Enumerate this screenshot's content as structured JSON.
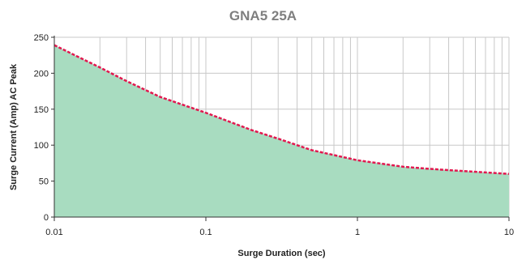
{
  "chart_data": {
    "type": "area",
    "title": "GNA5 25A",
    "xlabel": "Surge Duration (sec)",
    "ylabel": "Surge Current (Amp) AC Peak",
    "x_scale": "log",
    "xlim": [
      0.01,
      10
    ],
    "ylim": [
      0,
      250
    ],
    "x_ticks": [
      0.01,
      0.1,
      1,
      10
    ],
    "x_tick_labels": [
      "0.01",
      "0.1",
      "1",
      "10"
    ],
    "y_ticks": [
      0,
      50,
      100,
      150,
      200,
      250
    ],
    "y_tick_labels": [
      "0",
      "50",
      "100",
      "150",
      "200",
      "250"
    ],
    "grid": true,
    "legend": "none",
    "series": [
      {
        "x": [
          0.01,
          0.02,
          0.03,
          0.05,
          0.1,
          0.2,
          0.3,
          0.5,
          1,
          2,
          3,
          5,
          10
        ],
        "y": [
          239,
          208,
          189,
          167,
          145,
          121,
          109,
          93,
          79,
          70,
          67,
          64,
          60
        ]
      }
    ],
    "colors": {
      "line": "#e2184f",
      "fill": "#a8dcc0",
      "grid": "#c8c8c8",
      "axis": "#333333",
      "title": "#7f7f7f"
    }
  }
}
